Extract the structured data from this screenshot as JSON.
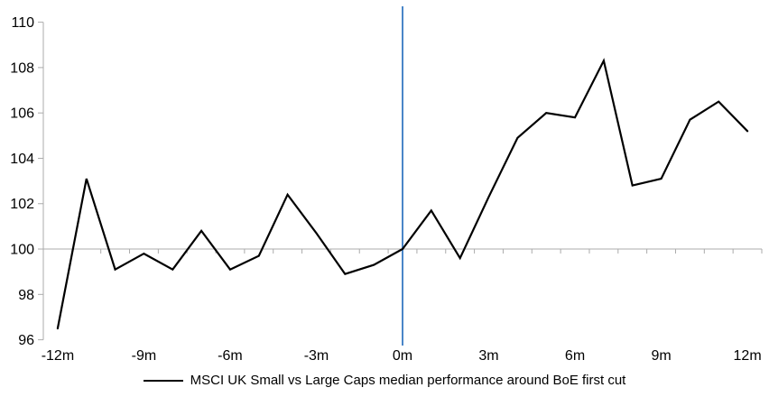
{
  "chart_data": {
    "type": "line",
    "title": "",
    "xlabel": "",
    "ylabel": "",
    "x_unit": "months relative to first cut",
    "x": [
      -12,
      -11,
      -10,
      -9,
      -8,
      -7,
      -6,
      -5,
      -4,
      -3,
      -2,
      -1,
      0,
      1,
      2,
      3,
      4,
      5,
      6,
      7,
      8,
      9,
      10,
      11,
      12
    ],
    "series": [
      {
        "name": "MSCI UK Small vs Large Caps median performance around BoE first cut",
        "color": "#000000",
        "values": [
          96.5,
          103.1,
          99.1,
          99.8,
          99.1,
          100.8,
          99.1,
          99.7,
          102.4,
          100.7,
          98.9,
          99.3,
          100.0,
          101.7,
          99.6,
          102.3,
          104.9,
          106.0,
          105.8,
          108.3,
          102.8,
          103.1,
          105.7,
          106.5,
          105.2
        ]
      }
    ],
    "ylim": [
      96,
      110
    ],
    "y_ticks": [
      96,
      98,
      100,
      102,
      104,
      106,
      108,
      110
    ],
    "x_ticks": [
      {
        "month": -12,
        "label": "-12m"
      },
      {
        "month": -9,
        "label": "-9m"
      },
      {
        "month": -6,
        "label": "-6m"
      },
      {
        "month": -3,
        "label": "-3m"
      },
      {
        "month": 0,
        "label": "0m"
      },
      {
        "month": 3,
        "label": "3m"
      },
      {
        "month": 6,
        "label": "6m"
      },
      {
        "month": 9,
        "label": "9m"
      },
      {
        "month": 12,
        "label": "12m"
      }
    ],
    "baseline_value": 100,
    "event_line": {
      "at_month": 0,
      "color": "#4A86C8"
    },
    "grid": "off",
    "legend_position": "bottom-center"
  },
  "legend": {
    "label": "MSCI UK Small vs Large Caps median performance around BoE first cut"
  },
  "colors": {
    "axis_gray": "#ABABAB",
    "series_line": "#000000",
    "event_line_blue": "#4A86C8",
    "text": "#000000",
    "background": "#ffffff"
  }
}
